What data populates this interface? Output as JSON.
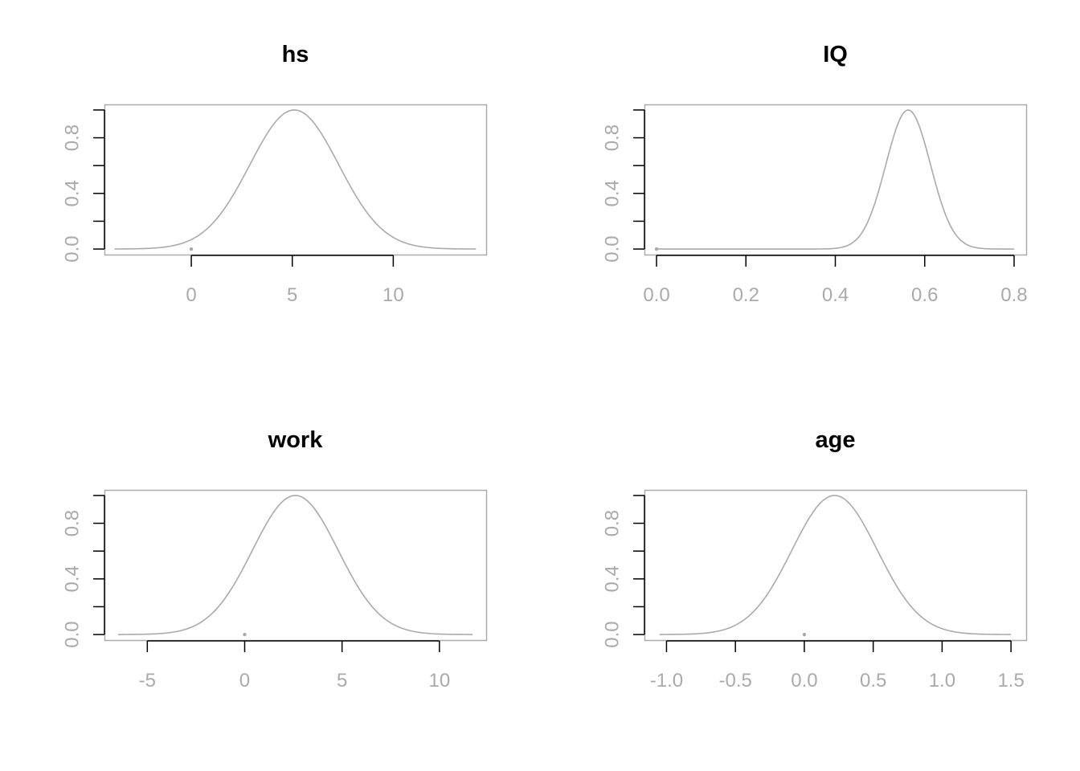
{
  "colors": {
    "curve": "#aaaaaa",
    "box": "#aaaaaa",
    "tick_labels": "#aaaaaa",
    "tick_marks": "#000000",
    "title": "#000000"
  },
  "chart_data": [
    {
      "type": "line",
      "title": "hs",
      "xlabel": "",
      "ylabel": "",
      "xlim": [
        -4.3,
        14.6
      ],
      "ylim": [
        -0.04,
        1.04
      ],
      "x_ticks": [
        0,
        5,
        10
      ],
      "x_tick_labels": [
        "0",
        "5",
        "10"
      ],
      "y_ticks": [
        0,
        0.2,
        0.4,
        0.6,
        0.8,
        1.0
      ],
      "y_tick_labels": [
        "0.0",
        "",
        "0.4",
        "",
        "0.8",
        ""
      ],
      "curve": {
        "shape": "gaussian",
        "x_range": [
          -3.8,
          14.1
        ],
        "mean": 5.1,
        "sd": 2.2,
        "peak": 1.0
      },
      "point": {
        "x": 0,
        "y": 0
      },
      "grid": false
    },
    {
      "type": "line",
      "title": "IQ",
      "xlabel": "",
      "ylabel": "",
      "xlim": [
        -0.027,
        0.827
      ],
      "ylim": [
        -0.04,
        1.04
      ],
      "x_ticks": [
        0,
        0.2,
        0.4,
        0.6,
        0.8
      ],
      "x_tick_labels": [
        "0.0",
        "0.2",
        "0.4",
        "0.6",
        "0.8"
      ],
      "y_ticks": [
        0,
        0.2,
        0.4,
        0.6,
        0.8,
        1.0
      ],
      "y_tick_labels": [
        "0.0",
        "",
        "0.4",
        "",
        "0.8",
        ""
      ],
      "curve": {
        "shape": "gaussian",
        "x_range": [
          0,
          0.8
        ],
        "mean": 0.563,
        "sd": 0.05,
        "peak": 1.0
      },
      "point": {
        "x": 0,
        "y": 0
      },
      "grid": false
    },
    {
      "type": "line",
      "title": "work",
      "xlabel": "",
      "ylabel": "",
      "xlim": [
        -7.2,
        12.4
      ],
      "ylim": [
        -0.04,
        1.04
      ],
      "x_ticks": [
        -5,
        0,
        5,
        10
      ],
      "x_tick_labels": [
        "-5",
        "0",
        "5",
        "10"
      ],
      "y_ticks": [
        0,
        0.2,
        0.4,
        0.6,
        0.8,
        1.0
      ],
      "y_tick_labels": [
        "0.0",
        "",
        "0.4",
        "",
        "0.8",
        ""
      ],
      "curve": {
        "shape": "gaussian",
        "x_range": [
          -6.5,
          11.7
        ],
        "mean": 2.6,
        "sd": 2.2,
        "peak": 1.0
      },
      "point": {
        "x": 0,
        "y": 0
      },
      "grid": false
    },
    {
      "type": "line",
      "title": "age",
      "xlabel": "",
      "ylabel": "",
      "xlim": [
        -1.16,
        1.61
      ],
      "ylim": [
        -0.04,
        1.04
      ],
      "x_ticks": [
        -1.0,
        -0.5,
        0.0,
        0.5,
        1.0,
        1.5
      ],
      "x_tick_labels": [
        "-1.0",
        "-0.5",
        "0.0",
        "0.5",
        "1.0",
        "1.5"
      ],
      "y_ticks": [
        0,
        0.2,
        0.4,
        0.6,
        0.8,
        1.0
      ],
      "y_tick_labels": [
        "0.0",
        "",
        "0.4",
        "",
        "0.8",
        ""
      ],
      "curve": {
        "shape": "gaussian",
        "x_range": [
          -1.05,
          1.5
        ],
        "mean": 0.22,
        "sd": 0.31,
        "peak": 1.0
      },
      "point": {
        "x": 0,
        "y": 0
      },
      "grid": false
    }
  ]
}
